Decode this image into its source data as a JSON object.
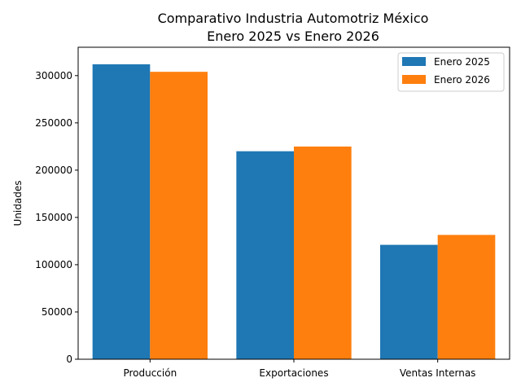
{
  "chart_data": {
    "type": "bar",
    "title": "Comparativo Industria Automotriz México",
    "subtitle": "Enero 2025 vs Enero 2026",
    "xlabel": "",
    "ylabel": "Unidades",
    "categories": [
      "Producción",
      "Exportaciones",
      "Ventas Internas"
    ],
    "series": [
      {
        "name": "Enero 2025",
        "color": "#1f77b4",
        "values": [
          312000,
          220000,
          121000
        ]
      },
      {
        "name": "Enero 2026",
        "color": "#ff7f0e",
        "values": [
          304000,
          225000,
          131500
        ]
      }
    ],
    "ylim": [
      0,
      330000
    ],
    "yticks": [
      0,
      50000,
      100000,
      150000,
      200000,
      250000,
      300000
    ],
    "grid": false,
    "legend_position": "top-right"
  }
}
